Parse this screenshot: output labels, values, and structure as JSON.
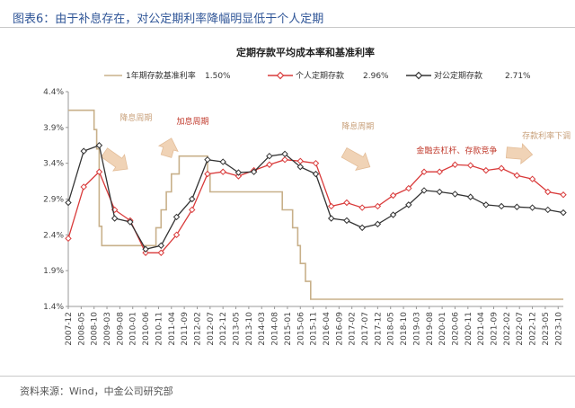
{
  "figure_title": "图表6：由于补息存在，对公定期利率降幅明显低于个人定期",
  "source": "资料来源：Wind，中金公司研究部",
  "colors": {
    "title": "#2f5597",
    "base_rate": "#c8b08a",
    "personal": "#d93a3a",
    "corporate": "#333333",
    "arrow": "#e8c9a8"
  },
  "chart_data": {
    "type": "line",
    "title": "定期存款平均成本率和基准利率",
    "ylim": [
      1.4,
      4.4
    ],
    "yticks": [
      "1.4%",
      "1.9%",
      "2.4%",
      "2.9%",
      "3.4%",
      "3.9%",
      "4.4%"
    ],
    "x": [
      "2007-12",
      "2008-05",
      "2008-10",
      "2009-03",
      "2009-08",
      "2010-01",
      "2010-06",
      "2010-11",
      "2011-04",
      "2011-09",
      "2012-02",
      "2012-07",
      "2012-12",
      "2013-05",
      "2013-10",
      "2014-03",
      "2014-08",
      "2015-01",
      "2015-06",
      "2015-11",
      "2016-04",
      "2016-09",
      "2017-02",
      "2017-07",
      "2017-12",
      "2018-05",
      "2018-10",
      "2019-03",
      "2019-08",
      "2020-01",
      "2020-06",
      "2020-11",
      "2021-04",
      "2021-09",
      "2022-02",
      "2022-07",
      "2022-12",
      "2023-05",
      "2023-10"
    ],
    "series": [
      {
        "name": "1年期存款基准利率",
        "end_label": "1.50%",
        "step": true,
        "points": [
          [
            "2007-12",
            4.14
          ],
          [
            "2008-09",
            4.14
          ],
          [
            "2008-10",
            3.87
          ],
          [
            "2008-11",
            3.6
          ],
          [
            "2008-12",
            2.52
          ],
          [
            "2009-01",
            2.25
          ],
          [
            "2010-10",
            2.5
          ],
          [
            "2010-12",
            2.75
          ],
          [
            "2011-02",
            3.0
          ],
          [
            "2011-04",
            3.25
          ],
          [
            "2011-07",
            3.5
          ],
          [
            "2012-06",
            3.25
          ],
          [
            "2012-07",
            3.0
          ],
          [
            "2014-11",
            2.75
          ],
          [
            "2015-03",
            2.5
          ],
          [
            "2015-05",
            2.25
          ],
          [
            "2015-06",
            2.0
          ],
          [
            "2015-08",
            1.75
          ],
          [
            "2015-10",
            1.5
          ],
          [
            "2023-12",
            1.5
          ]
        ]
      },
      {
        "name": "个人定期存款",
        "end_label": "2.96%",
        "step": false,
        "points": [
          [
            "2007-12",
            2.35
          ],
          [
            "2008-06",
            3.07
          ],
          [
            "2008-12",
            3.28
          ],
          [
            "2009-06",
            2.75
          ],
          [
            "2009-12",
            2.6
          ],
          [
            "2010-06",
            2.15
          ],
          [
            "2010-12",
            2.15
          ],
          [
            "2011-06",
            2.4
          ],
          [
            "2011-12",
            2.75
          ],
          [
            "2012-06",
            3.25
          ],
          [
            "2012-12",
            3.28
          ],
          [
            "2013-06",
            3.22
          ],
          [
            "2013-12",
            3.3
          ],
          [
            "2014-06",
            3.38
          ],
          [
            "2014-12",
            3.45
          ],
          [
            "2015-06",
            3.43
          ],
          [
            "2015-12",
            3.4
          ],
          [
            "2016-06",
            2.8
          ],
          [
            "2016-12",
            2.85
          ],
          [
            "2017-06",
            2.78
          ],
          [
            "2017-12",
            2.8
          ],
          [
            "2018-06",
            2.95
          ],
          [
            "2018-12",
            3.05
          ],
          [
            "2019-06",
            3.28
          ],
          [
            "2019-12",
            3.28
          ],
          [
            "2020-06",
            3.38
          ],
          [
            "2020-12",
            3.37
          ],
          [
            "2021-06",
            3.3
          ],
          [
            "2021-12",
            3.33
          ],
          [
            "2022-06",
            3.23
          ],
          [
            "2022-12",
            3.18
          ],
          [
            "2023-06",
            3.0
          ],
          [
            "2023-12",
            2.96
          ]
        ]
      },
      {
        "name": "对公定期存款",
        "end_label": "2.71%",
        "step": false,
        "points": [
          [
            "2007-12",
            2.85
          ],
          [
            "2008-06",
            3.57
          ],
          [
            "2008-12",
            3.65
          ],
          [
            "2009-06",
            2.63
          ],
          [
            "2009-12",
            2.58
          ],
          [
            "2010-06",
            2.2
          ],
          [
            "2010-12",
            2.25
          ],
          [
            "2011-06",
            2.65
          ],
          [
            "2011-12",
            2.9
          ],
          [
            "2012-06",
            3.45
          ],
          [
            "2012-12",
            3.42
          ],
          [
            "2013-06",
            3.27
          ],
          [
            "2013-12",
            3.28
          ],
          [
            "2014-06",
            3.5
          ],
          [
            "2014-12",
            3.53
          ],
          [
            "2015-06",
            3.35
          ],
          [
            "2015-12",
            3.25
          ],
          [
            "2016-06",
            2.63
          ],
          [
            "2016-12",
            2.6
          ],
          [
            "2017-06",
            2.5
          ],
          [
            "2017-12",
            2.55
          ],
          [
            "2018-06",
            2.68
          ],
          [
            "2018-12",
            2.82
          ],
          [
            "2019-06",
            3.02
          ],
          [
            "2019-12",
            3.0
          ],
          [
            "2020-06",
            2.97
          ],
          [
            "2020-12",
            2.93
          ],
          [
            "2021-06",
            2.82
          ],
          [
            "2021-12",
            2.8
          ],
          [
            "2022-06",
            2.79
          ],
          [
            "2022-12",
            2.78
          ],
          [
            "2023-06",
            2.75
          ],
          [
            "2023-12",
            2.71
          ]
        ]
      }
    ],
    "annotations": [
      {
        "text": "降息周期",
        "color": "#c8a07a",
        "x": "2009-08",
        "y": 4.0
      },
      {
        "text": "加息周期",
        "color": "#c0392b",
        "x": "2011-06",
        "y": 3.95
      },
      {
        "text": "降息周期",
        "color": "#c8a07a",
        "x": "2016-10",
        "y": 3.88
      },
      {
        "text": "金融去杠杆、存款竞争",
        "color": "#c0392b",
        "x": "2019-03",
        "y": 3.54
      },
      {
        "text": "存款利率下调",
        "color": "#c8a07a",
        "x": "2022-08",
        "y": 3.75
      }
    ],
    "arrows": [
      {
        "from": [
          "2009-02",
          3.55
        ],
        "to": [
          "2009-11",
          3.32
        ]
      },
      {
        "from": [
          "2011-02",
          3.5
        ],
        "to": [
          "2011-04",
          3.75
        ]
      },
      {
        "from": [
          "2016-11",
          3.55
        ],
        "to": [
          "2017-09",
          3.35
        ]
      },
      {
        "from": [
          "2022-02",
          3.55
        ],
        "to": [
          "2022-12",
          3.52
        ]
      }
    ]
  }
}
